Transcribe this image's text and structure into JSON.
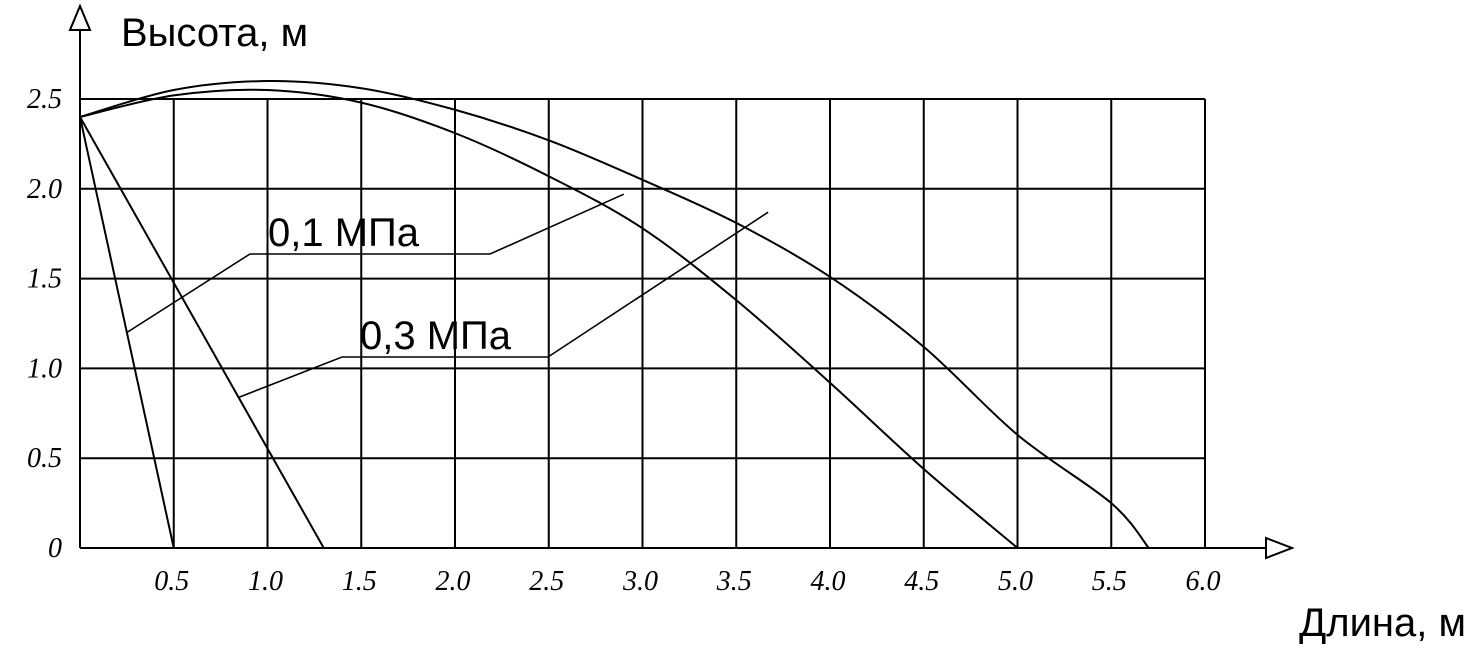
{
  "chart_data": {
    "type": "line",
    "xlabel": "Длина, м",
    "ylabel": "Высота, м",
    "xlim": [
      0,
      6.0
    ],
    "ylim": [
      0,
      2.5
    ],
    "grid": true,
    "x_ticks": [
      "0.5",
      "1.0",
      "1.5",
      "2.0",
      "2.5",
      "3.0",
      "3.5",
      "4.0",
      "4.5",
      "5.0",
      "5.5",
      "6.0"
    ],
    "y_ticks": [
      "0",
      "0.5",
      "1.0",
      "1.5",
      "2.0",
      "2.5"
    ],
    "series": [
      {
        "x": [
          0,
          0.5
        ],
        "y": [
          2.4,
          0
        ]
      },
      {
        "x": [
          0,
          1.3
        ],
        "y": [
          2.4,
          0
        ]
      },
      {
        "x": [
          0,
          0.5,
          1.0,
          1.5,
          2.0,
          2.5,
          3.0,
          3.5,
          4.0,
          4.5,
          5.0
        ],
        "y": [
          2.4,
          2.52,
          2.55,
          2.48,
          2.31,
          2.07,
          1.78,
          1.38,
          0.92,
          0.44,
          0
        ]
      },
      {
        "x": [
          0,
          0.5,
          1.0,
          1.5,
          2.0,
          2.5,
          3.0,
          3.5,
          4.0,
          4.5,
          5.0,
          5.5,
          5.7
        ],
        "y": [
          2.4,
          2.55,
          2.6,
          2.56,
          2.44,
          2.27,
          2.05,
          1.81,
          1.51,
          1.12,
          0.63,
          0.25,
          0
        ]
      }
    ],
    "annotations": [
      {
        "text": "0,1 МПа",
        "points_to": [
          [
            0.25,
            1.2
          ],
          [
            2.9,
            1.97
          ]
        ]
      },
      {
        "text": "0,3 МПа",
        "points_to": [
          [
            0.85,
            0.84
          ],
          [
            3.67,
            1.87
          ]
        ]
      }
    ]
  }
}
